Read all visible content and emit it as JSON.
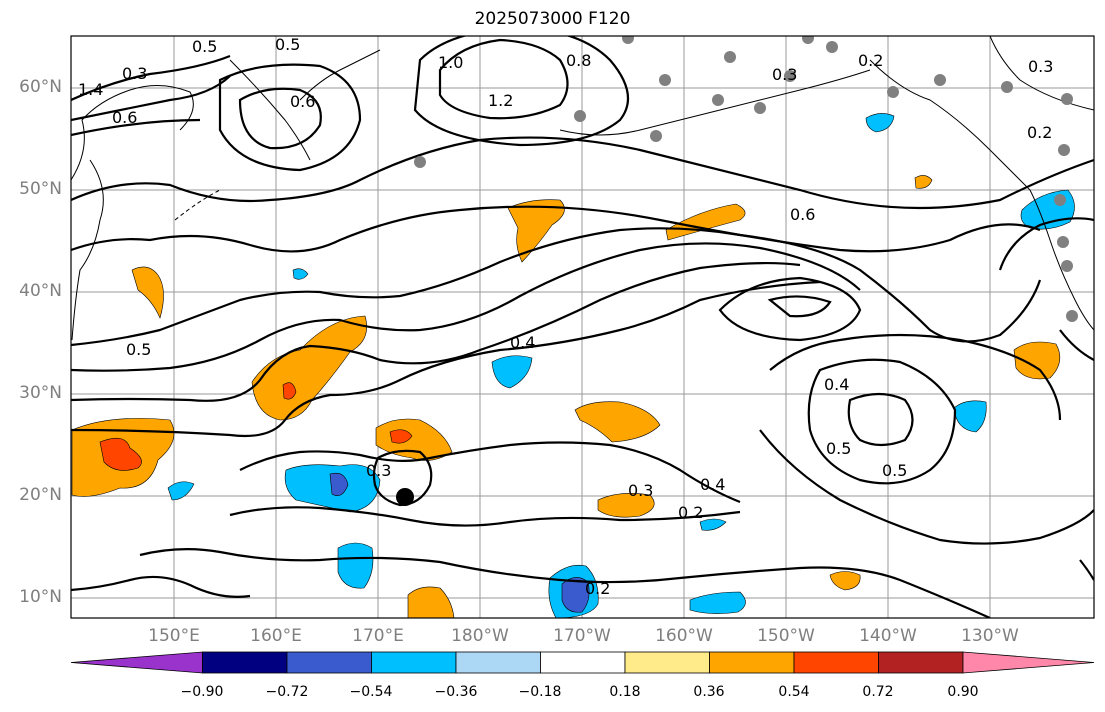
{
  "title": "2025073000 F120",
  "lat_labels": [
    "60°N",
    "50°N",
    "40°N",
    "30°N",
    "20°N",
    "10°N"
  ],
  "lon_labels": [
    "150°E",
    "160°E",
    "170°E",
    "180°W",
    "170°W",
    "160°W",
    "150°W",
    "140°W",
    "130°W"
  ],
  "colorbar": {
    "ticks": [
      "−0.90",
      "−0.72",
      "−0.54",
      "−0.36",
      "−0.18",
      "0.18",
      "0.36",
      "0.54",
      "0.72",
      "0.90"
    ],
    "colors": [
      "#9933cc",
      "#000080",
      "#3a5bcd",
      "#00bfff",
      "#add8f5",
      "#ffffff",
      "#ffeb8a",
      "#ffa500",
      "#ff4500",
      "#b22222",
      "#ff88aa"
    ]
  },
  "contour_labels": [
    "1.4",
    "0.3",
    "0.5",
    "0.6",
    "0.5",
    "1.0",
    "1.2",
    "0.8",
    "0.3",
    "0.2",
    "0.3",
    "0.2",
    "0.6",
    "0.5",
    "0.6",
    "0.4",
    "0.4",
    "0.5",
    "0.3",
    "0.5",
    "0.3",
    "0.4",
    "0.2",
    "0.2"
  ]
}
